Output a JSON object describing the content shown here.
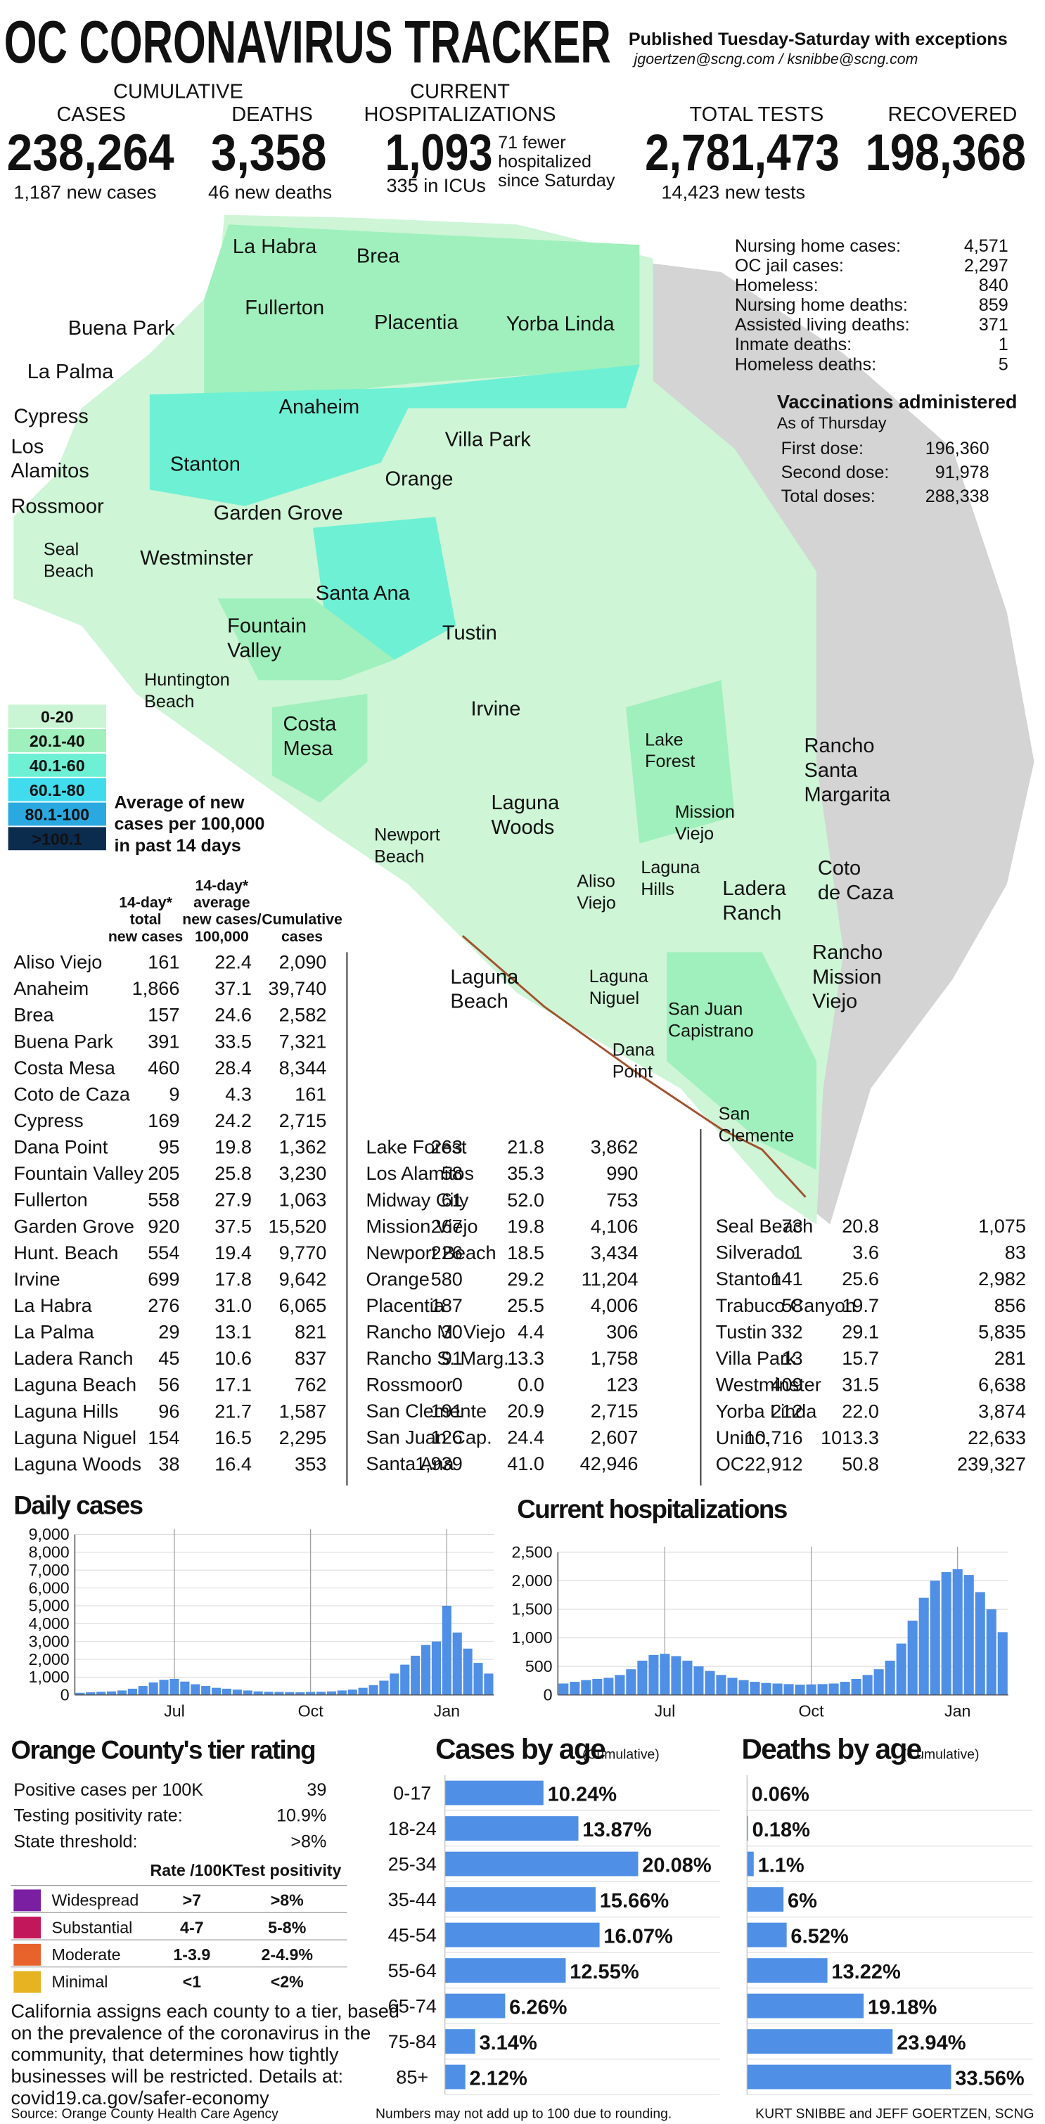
{
  "header": {
    "title": "OC CORONAVIRUS TRACKER",
    "subtitle": "Published Tuesday-Saturday with exceptions",
    "emails": "jgoertzen@scng.com / ksnibbe@scng.com"
  },
  "stats": {
    "cumulative": "CUMULATIVE",
    "cases_label": "CASES",
    "cases": "238,264",
    "new_cases": "1,187 new cases",
    "deaths_label": "DEATHS",
    "deaths": "3,358",
    "new_deaths": "46 new deaths",
    "current": "CURRENT",
    "hosp_label": "HOSPITALIZATIONS",
    "hosp": "1,093",
    "hosp_note": [
      "71 fewer",
      "hospitalized",
      "since Saturday"
    ],
    "icu": "335 in ICUs",
    "tests_label": "TOTAL TESTS",
    "tests": "2,781,473",
    "new_tests": "14,423 new tests",
    "recovered_label": "RECOVERED",
    "recovered": "198,368"
  },
  "side": {
    "rows": [
      [
        "Nursing home cases:",
        "4,571"
      ],
      [
        "OC jail cases:",
        "2,297"
      ],
      [
        "Homeless:",
        "840"
      ],
      [
        "Nursing home deaths:",
        "859"
      ],
      [
        "Assisted living deaths:",
        "371"
      ],
      [
        "Inmate deaths:",
        "1"
      ],
      [
        "Homeless deaths:",
        "5"
      ]
    ]
  },
  "vaccinations": {
    "title": "Vaccinations administered",
    "subtitle": "As of Thursday",
    "rows": [
      [
        "First dose:",
        "196,360"
      ],
      [
        "Second dose:",
        "91,978"
      ],
      [
        "Total doses:",
        "288,338"
      ]
    ]
  },
  "map": {
    "labels": [
      [
        "La Habra"
      ],
      [
        "Brea"
      ],
      [
        "Fullerton"
      ],
      [
        "Placentia"
      ],
      [
        "Yorba Linda"
      ],
      [
        "Buena Park"
      ],
      [
        "La Palma"
      ],
      [
        "Cypress"
      ],
      [
        "Los",
        "Alamitos"
      ],
      [
        "Anaheim"
      ],
      [
        "Villa Park"
      ],
      [
        "Stanton"
      ],
      [
        "Orange"
      ],
      [
        "Rossmoor"
      ],
      [
        "Garden Grove"
      ],
      [
        "Seal",
        "Beach"
      ],
      [
        "Westminster"
      ],
      [
        "Santa Ana"
      ],
      [
        "Fountain",
        "Valley"
      ],
      [
        "Tustin"
      ],
      [
        "Huntington",
        "Beach"
      ],
      [
        "Irvine"
      ],
      [
        "Costa",
        "Mesa"
      ],
      [
        "Lake",
        "Forest"
      ],
      [
        "Rancho",
        "Santa",
        "Margarita"
      ],
      [
        "Mission",
        "Viejo"
      ],
      [
        "Laguna",
        "Woods"
      ],
      [
        "Newport",
        "Beach"
      ],
      [
        "Aliso",
        "Viejo"
      ],
      [
        "Laguna",
        "Hills"
      ],
      [
        "Ladera",
        "Ranch"
      ],
      [
        "Coto",
        "de Caza"
      ],
      [
        "Rancho",
        "Mission",
        "Viejo"
      ],
      [
        "Laguna",
        "Beach"
      ],
      [
        "Laguna",
        "Niguel"
      ],
      [
        "San Juan",
        "Capistrano"
      ],
      [
        "Dana",
        "Point"
      ],
      [
        "San",
        "Clemente"
      ]
    ],
    "legend": {
      "items": [
        {
          "label": "0-20",
          "color": "#c9f5d4"
        },
        {
          "label": "20.1-40",
          "color": "#9ff0bc"
        },
        {
          "label": "40.1-60",
          "color": "#6ef0d4"
        },
        {
          "label": "60.1-80",
          "color": "#40dcee"
        },
        {
          "label": "80.1-100",
          "color": "#2aa8e0"
        },
        {
          "label": ">100.1",
          "color": "#0c2c4e"
        }
      ],
      "note": [
        "Average of new",
        "cases per 100,000",
        "in past 14 days"
      ]
    }
  },
  "table": {
    "headers": [
      [
        "14-day*",
        "total",
        "new cases"
      ],
      [
        "14-day*",
        "average",
        "new cases/",
        "100,000"
      ],
      [
        "Cumulative",
        "cases"
      ]
    ],
    "columns": [
      [
        [
          "Aliso Viejo",
          "161",
          "22.4",
          "2,090"
        ],
        [
          "Anaheim",
          "1,866",
          "37.1",
          "39,740"
        ],
        [
          "Brea",
          "157",
          "24.6",
          "2,582"
        ],
        [
          "Buena Park",
          "391",
          "33.5",
          "7,321"
        ],
        [
          "Costa Mesa",
          "460",
          "28.4",
          "8,344"
        ],
        [
          "Coto de Caza",
          "9",
          "4.3",
          "161"
        ],
        [
          "Cypress",
          "169",
          "24.2",
          "2,715"
        ],
        [
          "Dana Point",
          "95",
          "19.8",
          "1,362"
        ],
        [
          "Fountain Valley",
          "205",
          "25.8",
          "3,230"
        ],
        [
          "Fullerton",
          "558",
          "27.9",
          "1,063"
        ],
        [
          "Garden Grove",
          "920",
          "37.5",
          "15,520"
        ],
        [
          "Hunt. Beach",
          "554",
          "19.4",
          "9,770"
        ],
        [
          "Irvine",
          "699",
          "17.8",
          "9,642"
        ],
        [
          "La Habra",
          "276",
          "31.0",
          "6,065"
        ],
        [
          "La Palma",
          "29",
          "13.1",
          "821"
        ],
        [
          "Ladera Ranch",
          "45",
          "10.6",
          "837"
        ],
        [
          "Laguna Beach",
          "56",
          "17.1",
          "762"
        ],
        [
          "Laguna Hills",
          "96",
          "21.7",
          "1,587"
        ],
        [
          "Laguna Niguel",
          "154",
          "16.5",
          "2,295"
        ],
        [
          "Laguna Woods",
          "38",
          "16.4",
          "353"
        ]
      ],
      [
        [
          "Lake Forest",
          "263",
          "21.8",
          "3,862"
        ],
        [
          "Los Alamitos",
          "58",
          "35.3",
          "990"
        ],
        [
          "Midway City",
          "61",
          "52.0",
          "753"
        ],
        [
          "Mission Viejo",
          "267",
          "19.8",
          "4,106"
        ],
        [
          "Newport Beach",
          "226",
          "18.5",
          "3,434"
        ],
        [
          "Orange",
          "580",
          "29.2",
          "11,204"
        ],
        [
          "Placentia",
          "187",
          "25.5",
          "4,006"
        ],
        [
          "Rancho M. Viejo",
          "30",
          "4.4",
          "306"
        ],
        [
          "Rancho S. Marg.",
          "91",
          "13.3",
          "1,758"
        ],
        [
          "Rossmoor",
          "0",
          "0.0",
          "123"
        ],
        [
          "San Clemente",
          "191",
          "20.9",
          "2,715"
        ],
        [
          "San Juan Cap.",
          "126",
          "24.4",
          "2,607"
        ],
        [
          "Santa Ana",
          "1,939",
          "41.0",
          "42,946"
        ]
      ],
      [
        [
          "Seal Beach",
          "73",
          "20.8",
          "1,075"
        ],
        [
          "Silverado",
          "1",
          "3.6",
          "83"
        ],
        [
          "Stanton",
          "141",
          "25.6",
          "2,982"
        ],
        [
          "Trabuco Canyon",
          "58",
          "19.7",
          "856"
        ],
        [
          "Tustin",
          "332",
          "29.1",
          "5,835"
        ],
        [
          "Villa Park",
          "13",
          "15.7",
          "281"
        ],
        [
          "Westminster",
          "409",
          "31.5",
          "6,638"
        ],
        [
          "Yorba Linda",
          "212",
          "22.0",
          "3,874"
        ],
        [
          "Uninc.",
          "10,716",
          "1013.3",
          "22,633"
        ],
        [
          "OC",
          "22,912",
          "50.8",
          "239,327"
        ]
      ]
    ]
  },
  "tier": {
    "title": "Orange County's tier rating",
    "rows": [
      [
        "Positive cases per 100K",
        "39"
      ],
      [
        "Testing positivity rate:",
        "10.9%"
      ],
      [
        "State threshold:",
        ">8%"
      ]
    ],
    "headers": [
      "Rate /100K",
      "Test positivity"
    ],
    "tiers": [
      {
        "name": "Widespread",
        "color": "#7b1fa2",
        "rate": ">7",
        "positivity": ">8%"
      },
      {
        "name": "Substantial",
        "color": "#c2185b",
        "rate": "4-7",
        "positivity": "5-8%"
      },
      {
        "name": "Moderate",
        "color": "#e8632b",
        "rate": "1-3.9",
        "positivity": "2-4.9%"
      },
      {
        "name": "Minimal",
        "color": "#e6b422",
        "rate": "<1",
        "positivity": "<2%"
      }
    ],
    "note": [
      "California assigns each county to a tier, based",
      "on the prevalence of the coronavirus in the",
      "community, that determines how tightly",
      "businesses will be restricted. Details at:",
      "covid19.ca.gov/safer-economy"
    ]
  },
  "footer": {
    "source": "Source: Orange County Health Care Agency",
    "note": "Numbers may not add up to 100 due to rounding.",
    "credit": "KURT SNIBBE and JEFF GOERTZEN, SCNG"
  },
  "chart_data": [
    {
      "type": "bar",
      "title": "Daily cases",
      "color": "#4f8fe6",
      "grid": "x",
      "categories": [
        null,
        null,
        null,
        null,
        null,
        null,
        null,
        null,
        null,
        "Jul",
        null,
        null,
        null,
        null,
        null,
        null,
        null,
        null,
        null,
        null,
        null,
        null,
        "Oct",
        null,
        null,
        null,
        null,
        null,
        null,
        null,
        null,
        null,
        null,
        null,
        null,
        "Jan",
        null,
        null,
        null,
        null
      ],
      "values": [
        120,
        150,
        180,
        200,
        250,
        350,
        500,
        700,
        850,
        900,
        750,
        600,
        500,
        400,
        350,
        300,
        250,
        200,
        180,
        170,
        160,
        150,
        170,
        180,
        200,
        250,
        300,
        400,
        550,
        800,
        1200,
        1700,
        2200,
        2800,
        3000,
        5000,
        3500,
        2600,
        1800,
        1200
      ],
      "ylim": [
        0,
        9000
      ],
      "yticks": [
        0,
        {
          "value": 1000,
          "label": "1,000"
        },
        {
          "value": 2000,
          "label": "2,000"
        },
        {
          "value": 3000,
          "label": "3,000"
        },
        {
          "value": 4000,
          "label": "4,000"
        },
        {
          "value": 5000,
          "label": "5,000"
        },
        {
          "value": 6000,
          "label": "6,000"
        },
        {
          "value": 7000,
          "label": "7,000"
        },
        {
          "value": 8000,
          "label": "8,000"
        },
        {
          "value": 9000,
          "label": "9,000"
        }
      ]
    },
    {
      "type": "bar",
      "title": "Current hospitalizations",
      "color": "#4f8fe6",
      "grid": "x",
      "categories": [
        null,
        null,
        null,
        null,
        null,
        null,
        null,
        null,
        null,
        "Jul",
        null,
        null,
        null,
        null,
        null,
        null,
        null,
        null,
        null,
        null,
        null,
        null,
        "Oct",
        null,
        null,
        null,
        null,
        null,
        null,
        null,
        null,
        null,
        null,
        null,
        null,
        "Jan",
        null,
        null,
        null,
        null
      ],
      "values": [
        200,
        230,
        260,
        280,
        300,
        350,
        450,
        600,
        700,
        720,
        680,
        600,
        500,
        420,
        350,
        300,
        260,
        230,
        210,
        200,
        190,
        180,
        185,
        190,
        200,
        230,
        280,
        350,
        450,
        600,
        900,
        1300,
        1700,
        2000,
        2150,
        2200,
        2100,
        1800,
        1500,
        1100
      ],
      "ylim": [
        0,
        2500
      ],
      "yticks": [
        0,
        500,
        {
          "value": 1000,
          "label": "1,000"
        },
        {
          "value": 1500,
          "label": "1,500"
        },
        {
          "value": 2000,
          "label": "2,000"
        },
        {
          "value": 2500,
          "label": "2,500"
        }
      ]
    },
    {
      "type": "hbar",
      "title": "Cases by age",
      "subtitle": "(Cumulative)",
      "color": "#4f8fe6",
      "categories": [
        "0-17",
        "18-24",
        "25-34",
        "35-44",
        "45-54",
        "55-64",
        "65-74",
        "75-84",
        "85+"
      ],
      "values": [
        10.24,
        13.87,
        20.08,
        15.66,
        16.07,
        12.55,
        6.26,
        3.14,
        2.12
      ],
      "value_labels": [
        "10.24%",
        "13.87%",
        "20.08%",
        "15.66%",
        "16.07%",
        "12.55%",
        "6.26%",
        "3.14%",
        "2.12%"
      ]
    },
    {
      "type": "hbar",
      "title": "Deaths by age",
      "subtitle": "(Cumulative)",
      "color": "#4f8fe6",
      "values": [
        0.06,
        0.18,
        1.1,
        6,
        6.52,
        13.22,
        19.18,
        23.94,
        33.56
      ],
      "value_labels": [
        "0.06%",
        "0.18%",
        "1.1%",
        "6%",
        "6.52%",
        "13.22%",
        "19.18%",
        "23.94%",
        "33.56%"
      ]
    }
  ]
}
